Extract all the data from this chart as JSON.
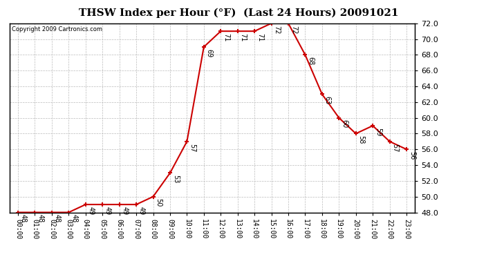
{
  "title": "THSW Index per Hour (°F)  (Last 24 Hours) 20091021",
  "copyright": "Copyright 2009 Cartronics.com",
  "hours": [
    0,
    1,
    2,
    3,
    4,
    5,
    6,
    7,
    8,
    9,
    10,
    11,
    12,
    13,
    14,
    15,
    16,
    17,
    18,
    19,
    20,
    21,
    22,
    23
  ],
  "x_labels": [
    "00:00",
    "01:00",
    "02:00",
    "03:00",
    "04:00",
    "05:00",
    "06:00",
    "07:00",
    "08:00",
    "09:00",
    "10:00",
    "11:00",
    "12:00",
    "13:00",
    "14:00",
    "15:00",
    "16:00",
    "17:00",
    "18:00",
    "19:00",
    "20:00",
    "21:00",
    "22:00",
    "23:00"
  ],
  "values": [
    48,
    48,
    48,
    48,
    49,
    49,
    49,
    49,
    50,
    53,
    57,
    69,
    71,
    71,
    71,
    72,
    72,
    68,
    63,
    60,
    58,
    59,
    57,
    56
  ],
  "ylim": [
    48.0,
    72.0
  ],
  "yticks": [
    48.0,
    50.0,
    52.0,
    54.0,
    56.0,
    58.0,
    60.0,
    62.0,
    64.0,
    66.0,
    68.0,
    70.0,
    72.0
  ],
  "line_color": "#cc0000",
  "marker_color": "#cc0000",
  "bg_color": "#ffffff",
  "grid_color": "#bbbbbb",
  "title_fontsize": 11,
  "label_fontsize": 7,
  "annotation_fontsize": 7,
  "copyright_fontsize": 6,
  "figsize": [
    6.9,
    3.75
  ],
  "dpi": 100
}
